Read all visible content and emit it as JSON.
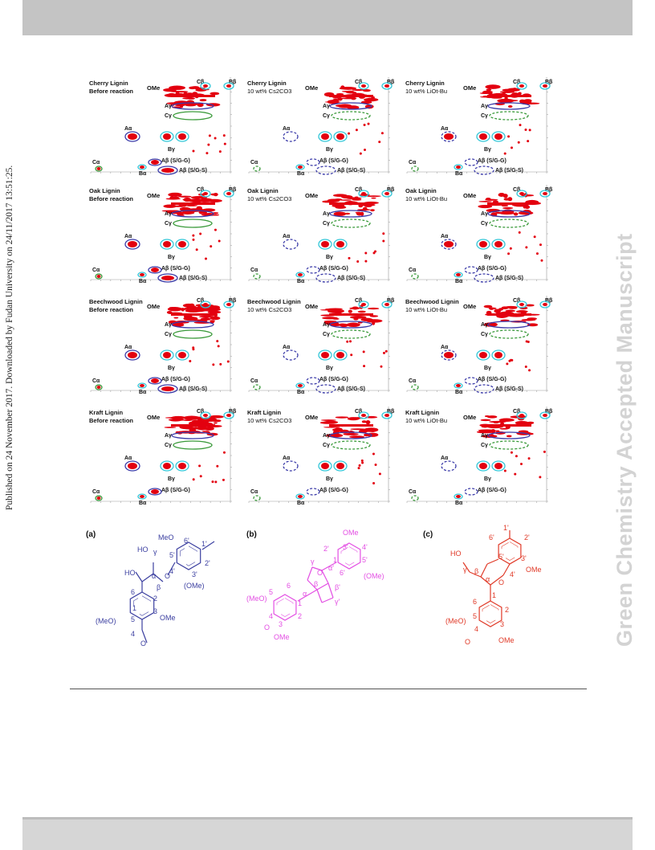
{
  "side_note": "Published on 24 November 2017. Downloaded by Fudan University on 24/11/2017 13:51:25.",
  "watermark": "Green Chemistry Accepted Manuscript",
  "panels": {
    "rows": [
      [
        "Cherry Lignin",
        "Before reaction"
      ],
      [
        "Oak Lignin",
        "Before reaction"
      ],
      [
        "Beechwood Lignin",
        "Before reaction"
      ],
      [
        "Kraft Lignin",
        "Before reaction"
      ]
    ],
    "col_labels": [
      "Before reaction",
      "10 wt% Cs2CO3",
      "10 wt% LiOt-Bu"
    ],
    "peak_labels": [
      "OMe",
      "Cβ",
      "Bβ",
      "Aγ",
      "Cγ",
      "Aα",
      "Bγ",
      "Aβ (S/G-G)",
      "Aβ (S/G-S)",
      "Cα",
      "Bα"
    ]
  },
  "structures": {
    "a": {
      "tag": "(a)",
      "name": "A",
      "atoms": [
        "HO",
        "γ",
        "MeO",
        "6'",
        "1'",
        "HO",
        "α",
        "β",
        "O",
        "5'",
        "4'",
        "3'",
        "2'",
        "(OMe)",
        "1",
        "6",
        "2",
        "5",
        "3",
        "(MeO)",
        "4",
        "OMe",
        "O"
      ]
    },
    "b": {
      "tag": "(b)",
      "name": "B",
      "atoms": [
        "OMe",
        "3'",
        "4'",
        "2'",
        "γ",
        "O",
        "α'",
        "1'",
        "5'",
        "(OMe)",
        "β",
        "6'",
        "β'",
        "(MeO)",
        "5",
        "6",
        "1",
        "α",
        "γ'",
        "4",
        "O",
        "3",
        "2",
        "OMe"
      ]
    },
    "c": {
      "tag": "(c)",
      "name": "C",
      "atoms": [
        "6'",
        "1'",
        "2'",
        "HO",
        "5'",
        "3'",
        "γ",
        "β",
        "OMe",
        "α",
        "O",
        "4'",
        "6",
        "1",
        "(MeO)",
        "5",
        "2",
        "4",
        "3",
        "O",
        "OMe"
      ]
    }
  },
  "colors": {
    "peak": "#e3000f",
    "A": "#3b3fa0",
    "B": "#e34fe3",
    "C": "#e03a28",
    "cyan": "#33c6d8",
    "green": "#3a9a3a",
    "purple": "#3a3aa8"
  }
}
